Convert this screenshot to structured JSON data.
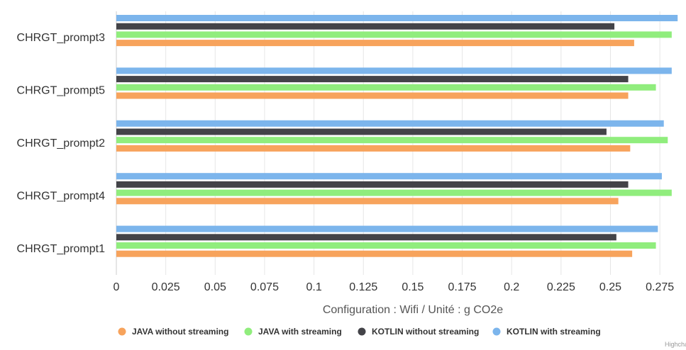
{
  "chart_data": {
    "type": "bar",
    "orientation": "horizontal",
    "title": "",
    "categories": [
      "CHRGT_prompt3",
      "CHRGT_prompt5",
      "CHRGT_prompt2",
      "CHRGT_prompt4",
      "CHRGT_prompt1"
    ],
    "series": [
      {
        "name": "JAVA without streaming",
        "color": "#f7a35c",
        "values": [
          0.262,
          0.259,
          0.26,
          0.254,
          0.261
        ]
      },
      {
        "name": "JAVA with streaming",
        "color": "#90ed7d",
        "values": [
          0.281,
          0.273,
          0.279,
          0.281,
          0.273
        ]
      },
      {
        "name": "KOTLIN without streaming",
        "color": "#434348",
        "values": [
          0.252,
          0.259,
          0.248,
          0.259,
          0.253
        ]
      },
      {
        "name": "KOTLIN with streaming",
        "color": "#7cb5ec",
        "values": [
          0.284,
          0.281,
          0.277,
          0.276,
          0.274
        ]
      }
    ],
    "xlabel": "Configuration : Wifi / Unité : g CO2e",
    "xlim": [
      0,
      0.285
    ],
    "ticks": [
      "0",
      "0.025",
      "0.05",
      "0.075",
      "0.1",
      "0.125",
      "0.15",
      "0.175",
      "0.2",
      "0.225",
      "0.25",
      "0.275"
    ],
    "grid": true,
    "legend_position": "bottom"
  },
  "credit": "Highcharts.com"
}
